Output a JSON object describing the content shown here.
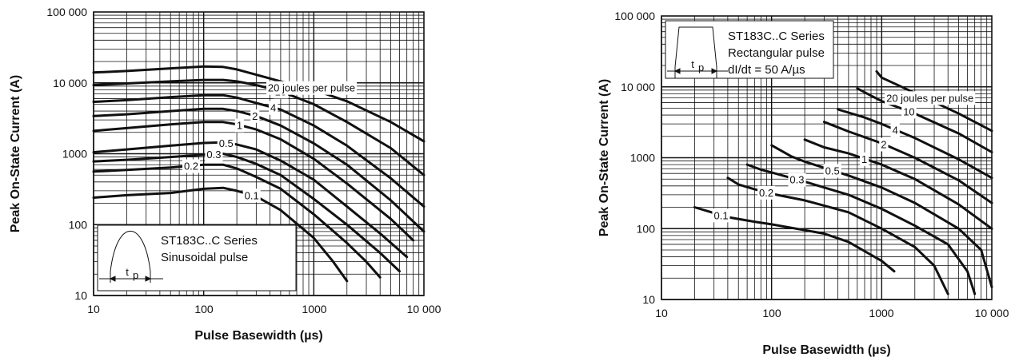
{
  "chart_data": [
    {
      "type": "line",
      "x_scale": "log",
      "y_scale": "log",
      "xlim": [
        10,
        10000
      ],
      "ylim": [
        10,
        100000
      ],
      "xlabel": "Pulse Basewidth (µs)",
      "ylabel": "Peak On-State Current (A)",
      "x_ticks": [
        "10",
        "100",
        "1000",
        "10 000"
      ],
      "y_ticks": [
        "10",
        "100",
        "1000",
        "10 000",
        "100 000"
      ],
      "grid": true,
      "info_box": {
        "lines": [
          "ST183C..C Series",
          "Sinusoidal pulse"
        ],
        "placement": "bottom-left"
      },
      "pulse_label": {
        "main": "t",
        "sub": "p"
      },
      "series": [
        {
          "name": "0.1",
          "points": [
            [
              10,
              240
            ],
            [
              20,
              260
            ],
            [
              50,
              280
            ],
            [
              100,
              320
            ],
            [
              150,
              330
            ],
            [
              200,
              300
            ],
            [
              300,
              250
            ],
            [
              500,
              160
            ],
            [
              1000,
              65
            ],
            [
              1500,
              30
            ],
            [
              2000,
              16
            ]
          ]
        },
        {
          "name": "0.2",
          "points": [
            [
              10,
              560
            ],
            [
              20,
              590
            ],
            [
              50,
              640
            ],
            [
              100,
              700
            ],
            [
              150,
              700
            ],
            [
              200,
              620
            ],
            [
              300,
              470
            ],
            [
              500,
              320
            ],
            [
              1000,
              140
            ],
            [
              2000,
              55
            ],
            [
              3000,
              30
            ],
            [
              4000,
              18
            ]
          ]
        },
        {
          "name": "0.3",
          "points": [
            [
              10,
              780
            ],
            [
              20,
              820
            ],
            [
              50,
              900
            ],
            [
              100,
              970
            ],
            [
              150,
              1000
            ],
            [
              200,
              900
            ],
            [
              300,
              720
            ],
            [
              500,
              500
            ],
            [
              1000,
              230
            ],
            [
              2000,
              100
            ],
            [
              4000,
              40
            ],
            [
              6000,
              22
            ]
          ]
        },
        {
          "name": "0.5",
          "points": [
            [
              10,
              1050
            ],
            [
              20,
              1150
            ],
            [
              50,
              1300
            ],
            [
              100,
              1420
            ],
            [
              150,
              1450
            ],
            [
              200,
              1350
            ],
            [
              300,
              1150
            ],
            [
              500,
              800
            ],
            [
              1000,
              430
            ],
            [
              2000,
              180
            ],
            [
              4000,
              75
            ],
            [
              7000,
              35
            ]
          ]
        },
        {
          "name": "1",
          "points": [
            [
              10,
              2100
            ],
            [
              20,
              2300
            ],
            [
              50,
              2600
            ],
            [
              100,
              2800
            ],
            [
              150,
              2800
            ],
            [
              200,
              2600
            ],
            [
              300,
              2200
            ],
            [
              500,
              1600
            ],
            [
              1000,
              850
            ],
            [
              2000,
              380
            ],
            [
              5000,
              120
            ],
            [
              8000,
              60
            ]
          ]
        },
        {
          "name": "2",
          "points": [
            [
              10,
              3400
            ],
            [
              20,
              3600
            ],
            [
              50,
              4000
            ],
            [
              100,
              4300
            ],
            [
              150,
              4300
            ],
            [
              200,
              4000
            ],
            [
              300,
              3400
            ],
            [
              500,
              2500
            ],
            [
              1000,
              1400
            ],
            [
              2000,
              700
            ],
            [
              5000,
              220
            ],
            [
              10000,
              80
            ]
          ]
        },
        {
          "name": "4",
          "points": [
            [
              10,
              5400
            ],
            [
              20,
              5700
            ],
            [
              50,
              6300
            ],
            [
              100,
              6700
            ],
            [
              150,
              6700
            ],
            [
              200,
              6200
            ],
            [
              300,
              5200
            ],
            [
              500,
              4200
            ],
            [
              1000,
              2500
            ],
            [
              2000,
              1300
            ],
            [
              5000,
              450
            ],
            [
              10000,
              180
            ]
          ]
        },
        {
          "name": "10",
          "points": [
            [
              10,
              9300
            ],
            [
              20,
              9800
            ],
            [
              50,
              10500
            ],
            [
              100,
              11000
            ],
            [
              150,
              11000
            ],
            [
              200,
              10500
            ],
            [
              300,
              9300
            ],
            [
              500,
              7600
            ],
            [
              1000,
              5000
            ],
            [
              2000,
              2800
            ],
            [
              5000,
              1200
            ],
            [
              10000,
              500
            ]
          ]
        },
        {
          "name": "20 joules per pulse",
          "points": [
            [
              10,
              14000
            ],
            [
              20,
              14700
            ],
            [
              50,
              16000
            ],
            [
              100,
              17000
            ],
            [
              150,
              16800
            ],
            [
              200,
              15500
            ],
            [
              300,
              13000
            ],
            [
              500,
              10500
            ],
            [
              1000,
              8000
            ],
            [
              2000,
              5500
            ],
            [
              5000,
              2800
            ],
            [
              10000,
              1500
            ]
          ]
        }
      ]
    },
    {
      "type": "line",
      "x_scale": "log",
      "y_scale": "log",
      "xlim": [
        10,
        10000
      ],
      "ylim": [
        10,
        100000
      ],
      "xlabel": "Pulse Basewidth (µs)",
      "ylabel": "Peak On-State Current (A)",
      "x_ticks": [
        "10",
        "100",
        "1000",
        "10 000"
      ],
      "y_ticks": [
        "10",
        "100",
        "1000",
        "10 000",
        "100 000"
      ],
      "grid": true,
      "info_box": {
        "lines": [
          "ST183C..C Series",
          "Rectangular pulse",
          "dI/dt = 50 A/µs"
        ],
        "placement": "top-left"
      },
      "pulse_label": {
        "main": "t",
        "sub": "p"
      },
      "series": [
        {
          "name": "0.1",
          "points": [
            [
              20,
              200
            ],
            [
              40,
              145
            ],
            [
              70,
              125
            ],
            [
              100,
              115
            ],
            [
              200,
              95
            ],
            [
              300,
              85
            ],
            [
              500,
              65
            ],
            [
              700,
              48
            ],
            [
              1000,
              35
            ],
            [
              1300,
              25
            ]
          ]
        },
        {
          "name": "0.2",
          "points": [
            [
              40,
              520
            ],
            [
              50,
              420
            ],
            [
              70,
              360
            ],
            [
              100,
              310
            ],
            [
              200,
              250
            ],
            [
              500,
              170
            ],
            [
              1000,
              100
            ],
            [
              2000,
              55
            ],
            [
              3000,
              30
            ],
            [
              4000,
              12
            ]
          ]
        },
        {
          "name": "0.3",
          "points": [
            [
              60,
              800
            ],
            [
              80,
              680
            ],
            [
              100,
              620
            ],
            [
              200,
              460
            ],
            [
              500,
              300
            ],
            [
              1000,
              190
            ],
            [
              2000,
              110
            ],
            [
              4000,
              60
            ],
            [
              6000,
              25
            ],
            [
              7000,
              12
            ]
          ]
        },
        {
          "name": "0.5",
          "points": [
            [
              100,
              1500
            ],
            [
              150,
              1050
            ],
            [
              200,
              880
            ],
            [
              500,
              560
            ],
            [
              1000,
              380
            ],
            [
              2000,
              230
            ],
            [
              5000,
              100
            ],
            [
              8000,
              50
            ],
            [
              10000,
              15
            ]
          ]
        },
        {
          "name": "1",
          "points": [
            [
              200,
              1800
            ],
            [
              300,
              1400
            ],
            [
              500,
              1150
            ],
            [
              1000,
              800
            ],
            [
              2000,
              500
            ],
            [
              5000,
              220
            ],
            [
              10000,
              100
            ]
          ]
        },
        {
          "name": "2",
          "points": [
            [
              300,
              3200
            ],
            [
              500,
              2350
            ],
            [
              1000,
              1600
            ],
            [
              2000,
              1000
            ],
            [
              5000,
              480
            ],
            [
              10000,
              230
            ]
          ]
        },
        {
          "name": "4",
          "points": [
            [
              400,
              4800
            ],
            [
              700,
              3700
            ],
            [
              1000,
              3000
            ],
            [
              2000,
              1900
            ],
            [
              5000,
              950
            ],
            [
              10000,
              520
            ]
          ]
        },
        {
          "name": "10",
          "points": [
            [
              600,
              9500
            ],
            [
              800,
              7500
            ],
            [
              1000,
              6300
            ],
            [
              2000,
              4200
            ],
            [
              5000,
              2200
            ],
            [
              10000,
              1200
            ]
          ]
        },
        {
          "name": "20 joules per pulse",
          "points": [
            [
              900,
              16500
            ],
            [
              1000,
              13500
            ],
            [
              2000,
              8200
            ],
            [
              5000,
              4200
            ],
            [
              10000,
              2400
            ]
          ]
        }
      ]
    }
  ]
}
